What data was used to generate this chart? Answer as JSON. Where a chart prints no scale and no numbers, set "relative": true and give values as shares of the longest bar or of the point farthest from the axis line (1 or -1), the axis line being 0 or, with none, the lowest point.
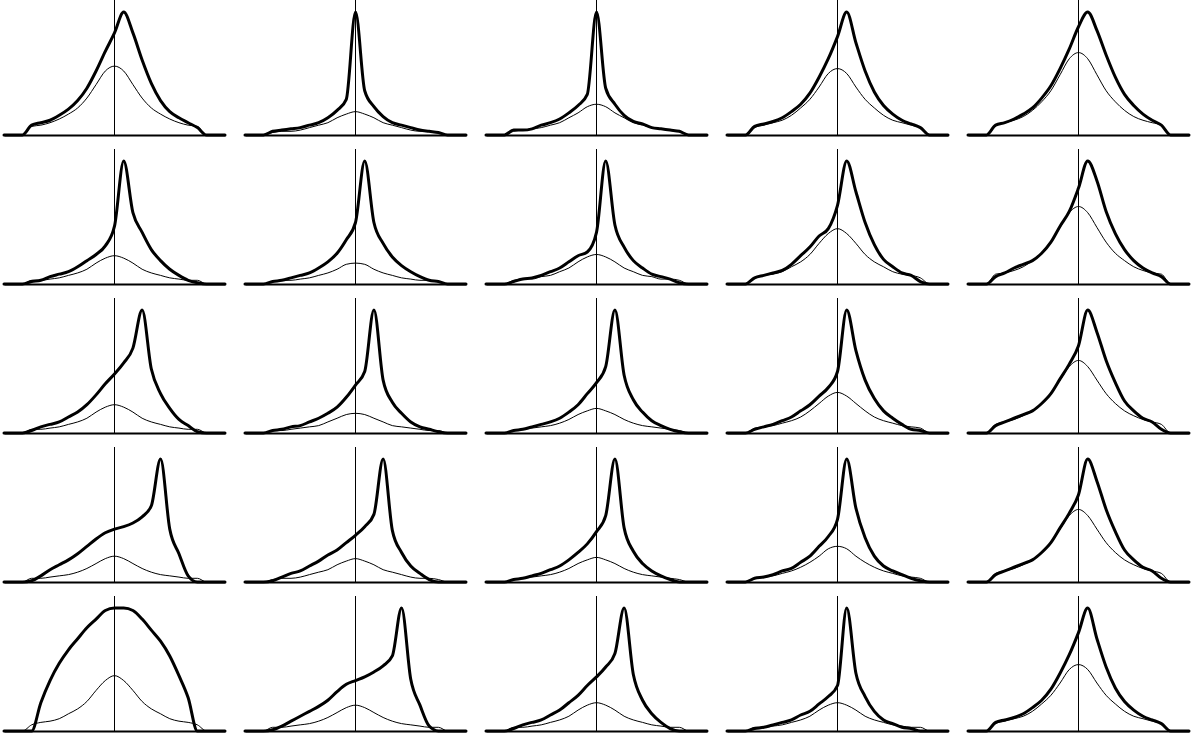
{
  "chart_data": [
    {
      "type": "line",
      "relative": true,
      "categories": [
        null,
        null,
        null,
        null,
        null,
        null,
        null,
        null,
        null,
        null,
        null,
        null,
        null,
        null,
        null,
        null,
        null,
        null,
        null,
        null,
        null,
        null,
        null,
        null,
        null
      ],
      "series": [
        {
          "color": "#000000",
          "values": [
            0,
            0,
            0,
            0.08,
            0.1,
            0.12,
            0.16,
            0.21,
            0.28,
            0.38,
            0.52,
            0.68,
            0.83,
            1,
            0.83,
            0.61,
            0.42,
            0.28,
            0.19,
            0.14,
            0.1,
            0.06,
            0,
            0,
            0
          ]
        },
        {
          "color": "#000000",
          "values": [
            0,
            0,
            0,
            0.07,
            0.08,
            0.1,
            0.13,
            0.17,
            0.22,
            0.3,
            0.41,
            0.52,
            0.56,
            0.52,
            0.41,
            0.3,
            0.22,
            0.17,
            0.13,
            0.1,
            0.08,
            0.07,
            0,
            0,
            0
          ]
        }
      ]
    },
    {
      "type": "line",
      "relative": true,
      "categories": [
        null,
        null,
        null,
        null,
        null,
        null,
        null,
        null,
        null,
        null,
        null,
        null,
        null,
        null,
        null,
        null,
        null,
        null,
        null,
        null,
        null,
        null,
        null,
        null,
        null
      ],
      "series": [
        {
          "color": "#000000",
          "values": [
            0,
            0,
            0,
            0.03,
            0.04,
            0.05,
            0.06,
            0.08,
            0.1,
            0.14,
            0.2,
            0.29,
            1,
            0.36,
            0.23,
            0.15,
            0.1,
            0.08,
            0.06,
            0.04,
            0.03,
            0.02,
            0,
            0,
            0
          ]
        },
        {
          "color": "#000000",
          "values": [
            0,
            0,
            0,
            0.02,
            0.03,
            0.03,
            0.04,
            0.06,
            0.08,
            0.1,
            0.14,
            0.17,
            0.19,
            0.17,
            0.14,
            0.1,
            0.08,
            0.06,
            0.04,
            0.03,
            0.03,
            0.02,
            0,
            0,
            0
          ]
        }
      ]
    },
    {
      "type": "line",
      "relative": true,
      "categories": [
        null,
        null,
        null,
        null,
        null,
        null,
        null,
        null,
        null,
        null,
        null,
        null,
        null,
        null,
        null,
        null,
        null,
        null,
        null,
        null,
        null,
        null,
        null,
        null,
        null
      ],
      "series": [
        {
          "color": "#000000",
          "values": [
            0,
            0,
            0,
            0.04,
            0.04,
            0.05,
            0.08,
            0.1,
            0.13,
            0.18,
            0.24,
            0.33,
            1,
            0.38,
            0.25,
            0.16,
            0.11,
            0.09,
            0.06,
            0.05,
            0.04,
            0.03,
            0,
            0,
            0
          ]
        },
        {
          "color": "#000000",
          "values": [
            0,
            0,
            0,
            0.03,
            0.04,
            0.05,
            0.06,
            0.08,
            0.1,
            0.14,
            0.18,
            0.23,
            0.25,
            0.23,
            0.18,
            0.14,
            0.1,
            0.08,
            0.06,
            0.05,
            0.04,
            0.03,
            0,
            0,
            0
          ]
        }
      ]
    },
    {
      "type": "line",
      "relative": true,
      "categories": [
        null,
        null,
        null,
        null,
        null,
        null,
        null,
        null,
        null,
        null,
        null,
        null,
        null,
        null,
        null,
        null,
        null,
        null,
        null,
        null,
        null,
        null,
        null,
        null,
        null
      ],
      "series": [
        {
          "color": "#000000",
          "values": [
            0,
            0,
            0,
            0.07,
            0.09,
            0.11,
            0.14,
            0.19,
            0.25,
            0.34,
            0.47,
            0.62,
            0.8,
            1,
            0.75,
            0.52,
            0.35,
            0.24,
            0.17,
            0.12,
            0.09,
            0.06,
            0,
            0,
            0
          ]
        },
        {
          "color": "#000000",
          "values": [
            0,
            0,
            0,
            0.06,
            0.08,
            0.1,
            0.12,
            0.16,
            0.22,
            0.29,
            0.39,
            0.5,
            0.54,
            0.5,
            0.39,
            0.29,
            0.22,
            0.16,
            0.12,
            0.1,
            0.08,
            0.06,
            0,
            0,
            0
          ]
        }
      ]
    },
    {
      "type": "line",
      "relative": true,
      "categories": [
        null,
        null,
        null,
        null,
        null,
        null,
        null,
        null,
        null,
        null,
        null,
        null,
        null,
        null,
        null,
        null,
        null,
        null,
        null,
        null,
        null,
        null,
        null,
        null,
        null
      ],
      "series": [
        {
          "color": "#000000",
          "values": [
            0,
            0,
            0,
            0.08,
            0.1,
            0.13,
            0.17,
            0.22,
            0.3,
            0.4,
            0.54,
            0.7,
            0.88,
            1,
            0.85,
            0.65,
            0.47,
            0.33,
            0.24,
            0.17,
            0.12,
            0.08,
            0,
            0,
            0
          ]
        },
        {
          "color": "#000000",
          "values": [
            0,
            0,
            0,
            0.08,
            0.1,
            0.12,
            0.15,
            0.2,
            0.27,
            0.36,
            0.49,
            0.62,
            0.67,
            0.62,
            0.49,
            0.36,
            0.27,
            0.2,
            0.15,
            0.12,
            0.1,
            0.08,
            0,
            0,
            0
          ]
        }
      ]
    },
    {
      "type": "line",
      "relative": true,
      "categories": [
        null,
        null,
        null,
        null,
        null,
        null,
        null,
        null,
        null,
        null,
        null,
        null,
        null,
        null,
        null,
        null,
        null,
        null,
        null,
        null,
        null,
        null,
        null,
        null,
        null
      ],
      "series": [
        {
          "color": "#000000",
          "values": [
            0,
            0,
            0,
            0.02,
            0.03,
            0.06,
            0.08,
            0.1,
            0.14,
            0.19,
            0.24,
            0.31,
            0.47,
            1,
            0.58,
            0.42,
            0.28,
            0.19,
            0.12,
            0.07,
            0.03,
            0.01,
            0,
            0,
            0
          ]
        },
        {
          "color": "#000000",
          "values": [
            0,
            0,
            0,
            0.03,
            0.03,
            0.04,
            0.05,
            0.07,
            0.09,
            0.12,
            0.17,
            0.21,
            0.23,
            0.21,
            0.17,
            0.12,
            0.09,
            0.07,
            0.05,
            0.04,
            0.03,
            0.03,
            0,
            0,
            0
          ]
        }
      ]
    },
    {
      "type": "line",
      "relative": true,
      "categories": [
        null,
        null,
        null,
        null,
        null,
        null,
        null,
        null,
        null,
        null,
        null,
        null,
        null,
        null,
        null,
        null,
        null,
        null,
        null,
        null,
        null,
        null,
        null,
        null,
        null
      ],
      "series": [
        {
          "color": "#000000",
          "values": [
            0,
            0,
            0,
            0.02,
            0.03,
            0.05,
            0.07,
            0.09,
            0.13,
            0.18,
            0.25,
            0.36,
            0.5,
            1,
            0.5,
            0.33,
            0.22,
            0.15,
            0.1,
            0.06,
            0.03,
            0.02,
            0,
            0,
            0
          ]
        },
        {
          "color": "#000000",
          "values": [
            0,
            0,
            0,
            0.02,
            0.03,
            0.03,
            0.04,
            0.05,
            0.07,
            0.09,
            0.12,
            0.16,
            0.17,
            0.16,
            0.12,
            0.09,
            0.07,
            0.05,
            0.04,
            0.03,
            0.03,
            0.02,
            0,
            0,
            0
          ]
        }
      ]
    },
    {
      "type": "line",
      "relative": true,
      "categories": [
        null,
        null,
        null,
        null,
        null,
        null,
        null,
        null,
        null,
        null,
        null,
        null,
        null,
        null,
        null,
        null,
        null,
        null,
        null,
        null,
        null,
        null,
        null,
        null,
        null
      ],
      "series": [
        {
          "color": "#000000",
          "values": [
            0,
            0,
            0,
            0.02,
            0.04,
            0.05,
            0.07,
            0.1,
            0.13,
            0.18,
            0.23,
            0.26,
            0.42,
            1,
            0.48,
            0.3,
            0.19,
            0.13,
            0.08,
            0.06,
            0.04,
            0.01,
            0,
            0,
            0
          ]
        },
        {
          "color": "#000000",
          "values": [
            0,
            0,
            0,
            0.03,
            0.04,
            0.04,
            0.06,
            0.07,
            0.1,
            0.13,
            0.18,
            0.22,
            0.24,
            0.22,
            0.18,
            0.13,
            0.1,
            0.07,
            0.06,
            0.04,
            0.04,
            0.03,
            0,
            0,
            0
          ]
        }
      ]
    },
    {
      "type": "line",
      "relative": true,
      "categories": [
        null,
        null,
        null,
        null,
        null,
        null,
        null,
        null,
        null,
        null,
        null,
        null,
        null,
        null,
        null,
        null,
        null,
        null,
        null,
        null,
        null,
        null,
        null,
        null,
        null
      ],
      "series": [
        {
          "color": "#000000",
          "values": [
            0,
            0,
            0,
            0.05,
            0.07,
            0.09,
            0.11,
            0.16,
            0.23,
            0.3,
            0.39,
            0.45,
            0.64,
            1,
            0.75,
            0.5,
            0.32,
            0.2,
            0.14,
            0.09,
            0.07,
            0.02,
            0,
            0,
            0
          ]
        },
        {
          "color": "#000000",
          "values": [
            0,
            0,
            0,
            0.05,
            0.07,
            0.08,
            0.1,
            0.14,
            0.18,
            0.24,
            0.33,
            0.41,
            0.45,
            0.41,
            0.33,
            0.24,
            0.18,
            0.14,
            0.1,
            0.08,
            0.07,
            0.05,
            0,
            0,
            0
          ]
        }
      ]
    },
    {
      "type": "line",
      "relative": true,
      "categories": [
        null,
        null,
        null,
        null,
        null,
        null,
        null,
        null,
        null,
        null,
        null,
        null,
        null,
        null,
        null,
        null,
        null,
        null,
        null,
        null,
        null,
        null,
        null,
        null,
        null
      ],
      "series": [
        {
          "color": "#000000",
          "values": [
            0,
            0,
            0,
            0.06,
            0.09,
            0.13,
            0.16,
            0.19,
            0.25,
            0.34,
            0.47,
            0.59,
            0.78,
            1,
            0.84,
            0.59,
            0.41,
            0.28,
            0.19,
            0.13,
            0.09,
            0.06,
            0,
            0,
            0
          ]
        },
        {
          "color": "#000000",
          "values": [
            0,
            0,
            0,
            0.08,
            0.09,
            0.11,
            0.14,
            0.19,
            0.25,
            0.34,
            0.46,
            0.58,
            0.63,
            0.58,
            0.46,
            0.34,
            0.25,
            0.19,
            0.14,
            0.11,
            0.09,
            0.08,
            0,
            0,
            0
          ]
        }
      ]
    },
    {
      "type": "line",
      "relative": true,
      "categories": [
        null,
        null,
        null,
        null,
        null,
        null,
        null,
        null,
        null,
        null,
        null,
        null,
        null,
        null,
        null,
        null,
        null,
        null,
        null,
        null,
        null,
        null,
        null,
        null,
        null
      ],
      "series": [
        {
          "color": "#000000",
          "values": [
            0,
            0,
            0,
            0.02,
            0.05,
            0.07,
            0.09,
            0.13,
            0.17,
            0.23,
            0.31,
            0.4,
            0.48,
            0.57,
            0.69,
            1,
            0.52,
            0.32,
            0.2,
            0.11,
            0.06,
            0.01,
            0,
            0,
            0
          ]
        },
        {
          "color": "#000000",
          "values": [
            0,
            0,
            0,
            0.03,
            0.03,
            0.04,
            0.05,
            0.07,
            0.09,
            0.12,
            0.17,
            0.21,
            0.23,
            0.21,
            0.17,
            0.12,
            0.09,
            0.07,
            0.05,
            0.04,
            0.03,
            0.03,
            0,
            0,
            0
          ]
        }
      ]
    },
    {
      "type": "line",
      "relative": true,
      "categories": [
        null,
        null,
        null,
        null,
        null,
        null,
        null,
        null,
        null,
        null,
        null,
        null,
        null,
        null,
        null,
        null,
        null,
        null,
        null,
        null,
        null,
        null,
        null,
        null,
        null
      ],
      "series": [
        {
          "color": "#000000",
          "values": [
            0,
            0,
            0,
            0.02,
            0.03,
            0.05,
            0.06,
            0.09,
            0.12,
            0.16,
            0.21,
            0.29,
            0.39,
            0.5,
            1,
            0.43,
            0.25,
            0.16,
            0.09,
            0.05,
            0.03,
            0.01,
            0,
            0,
            0
          ]
        },
        {
          "color": "#000000",
          "values": [
            0,
            0,
            0,
            0.02,
            0.02,
            0.03,
            0.04,
            0.05,
            0.06,
            0.09,
            0.12,
            0.15,
            0.16,
            0.15,
            0.12,
            0.09,
            0.06,
            0.05,
            0.04,
            0.03,
            0.02,
            0.02,
            0,
            0,
            0
          ]
        }
      ]
    },
    {
      "type": "line",
      "relative": true,
      "categories": [
        null,
        null,
        null,
        null,
        null,
        null,
        null,
        null,
        null,
        null,
        null,
        null,
        null,
        null,
        null,
        null,
        null,
        null,
        null,
        null,
        null,
        null,
        null,
        null,
        null
      ],
      "series": [
        {
          "color": "#000000",
          "values": [
            0,
            0,
            0,
            0.02,
            0.03,
            0.05,
            0.07,
            0.09,
            0.12,
            0.17,
            0.23,
            0.32,
            0.41,
            0.54,
            1,
            0.47,
            0.27,
            0.17,
            0.1,
            0.06,
            0.03,
            0.01,
            0,
            0,
            0
          ]
        },
        {
          "color": "#000000",
          "values": [
            0,
            0,
            0,
            0.02,
            0.03,
            0.04,
            0.05,
            0.06,
            0.08,
            0.11,
            0.15,
            0.18,
            0.2,
            0.18,
            0.15,
            0.11,
            0.08,
            0.06,
            0.05,
            0.04,
            0.03,
            0.02,
            0,
            0,
            0
          ]
        }
      ]
    },
    {
      "type": "line",
      "relative": true,
      "categories": [
        null,
        null,
        null,
        null,
        null,
        null,
        null,
        null,
        null,
        null,
        null,
        null,
        null,
        null,
        null,
        null,
        null,
        null,
        null,
        null,
        null,
        null,
        null,
        null,
        null
      ],
      "series": [
        {
          "color": "#000000",
          "values": [
            0,
            0,
            0,
            0.03,
            0.05,
            0.07,
            0.1,
            0.13,
            0.18,
            0.23,
            0.3,
            0.37,
            0.5,
            1,
            0.67,
            0.43,
            0.28,
            0.18,
            0.12,
            0.07,
            0.03,
            0.02,
            0,
            0,
            0
          ]
        },
        {
          "color": "#000000",
          "values": [
            0,
            0,
            0,
            0.04,
            0.05,
            0.06,
            0.08,
            0.1,
            0.13,
            0.18,
            0.24,
            0.3,
            0.33,
            0.3,
            0.24,
            0.18,
            0.13,
            0.1,
            0.08,
            0.06,
            0.05,
            0.04,
            0,
            0,
            0
          ]
        }
      ]
    },
    {
      "type": "line",
      "relative": true,
      "categories": [
        null,
        null,
        null,
        null,
        null,
        null,
        null,
        null,
        null,
        null,
        null,
        null,
        null,
        null,
        null,
        null,
        null,
        null,
        null,
        null,
        null,
        null,
        null,
        null,
        null
      ],
      "series": [
        {
          "color": "#000000",
          "values": [
            0,
            0,
            0,
            0.06,
            0.09,
            0.12,
            0.15,
            0.18,
            0.24,
            0.32,
            0.44,
            0.56,
            0.71,
            1,
            0.82,
            0.59,
            0.41,
            0.26,
            0.18,
            0.12,
            0.09,
            0.03,
            0,
            0,
            0
          ]
        },
        {
          "color": "#000000",
          "values": [
            0,
            0,
            0,
            0.07,
            0.09,
            0.11,
            0.14,
            0.18,
            0.24,
            0.32,
            0.43,
            0.54,
            0.59,
            0.54,
            0.43,
            0.32,
            0.24,
            0.18,
            0.14,
            0.11,
            0.09,
            0.07,
            0,
            0,
            0
          ]
        }
      ]
    },
    {
      "type": "line",
      "relative": true,
      "categories": [
        null,
        null,
        null,
        null,
        null,
        null,
        null,
        null,
        null,
        null,
        null,
        null,
        null,
        null,
        null,
        null,
        null,
        null,
        null,
        null,
        null,
        null,
        null,
        null,
        null
      ],
      "series": [
        {
          "color": "#000000",
          "values": [
            0,
            0,
            0,
            0.01,
            0.05,
            0.1,
            0.14,
            0.18,
            0.23,
            0.29,
            0.35,
            0.4,
            0.43,
            0.45,
            0.48,
            0.53,
            0.62,
            1,
            0.43,
            0.23,
            0.05,
            0,
            0,
            0,
            0
          ]
        },
        {
          "color": "#000000",
          "values": [
            0,
            0,
            0,
            0.03,
            0.03,
            0.04,
            0.05,
            0.06,
            0.08,
            0.11,
            0.15,
            0.19,
            0.21,
            0.19,
            0.15,
            0.11,
            0.08,
            0.06,
            0.05,
            0.04,
            0.03,
            0.03,
            0,
            0,
            0
          ]
        }
      ]
    },
    {
      "type": "line",
      "relative": true,
      "categories": [
        null,
        null,
        null,
        null,
        null,
        null,
        null,
        null,
        null,
        null,
        null,
        null,
        null,
        null,
        null,
        null,
        null,
        null,
        null,
        null,
        null,
        null,
        null,
        null,
        null
      ],
      "series": [
        {
          "color": "#000000",
          "values": [
            0,
            0,
            0,
            0.01,
            0.04,
            0.07,
            0.09,
            0.13,
            0.17,
            0.22,
            0.26,
            0.32,
            0.38,
            0.45,
            0.55,
            1,
            0.42,
            0.24,
            0.13,
            0.07,
            0.02,
            0,
            0,
            0,
            0
          ]
        },
        {
          "color": "#000000",
          "values": [
            0,
            0,
            0,
            0.02,
            0.03,
            0.03,
            0.04,
            0.06,
            0.08,
            0.1,
            0.14,
            0.17,
            0.19,
            0.17,
            0.14,
            0.1,
            0.08,
            0.06,
            0.04,
            0.03,
            0.03,
            0.02,
            0,
            0,
            0
          ]
        }
      ]
    },
    {
      "type": "line",
      "relative": true,
      "categories": [
        null,
        null,
        null,
        null,
        null,
        null,
        null,
        null,
        null,
        null,
        null,
        null,
        null,
        null,
        null,
        null,
        null,
        null,
        null,
        null,
        null,
        null,
        null,
        null,
        null
      ],
      "series": [
        {
          "color": "#000000",
          "values": [
            0,
            0,
            0,
            0.02,
            0.03,
            0.05,
            0.07,
            0.1,
            0.13,
            0.18,
            0.24,
            0.31,
            0.41,
            0.54,
            1,
            0.44,
            0.25,
            0.15,
            0.09,
            0.05,
            0.02,
            0,
            0,
            0,
            0
          ]
        },
        {
          "color": "#000000",
          "values": [
            0,
            0,
            0,
            0.02,
            0.03,
            0.04,
            0.05,
            0.06,
            0.08,
            0.11,
            0.15,
            0.18,
            0.2,
            0.18,
            0.15,
            0.11,
            0.08,
            0.06,
            0.05,
            0.04,
            0.03,
            0.02,
            0,
            0,
            0
          ]
        }
      ]
    },
    {
      "type": "line",
      "relative": true,
      "categories": [
        null,
        null,
        null,
        null,
        null,
        null,
        null,
        null,
        null,
        null,
        null,
        null,
        null,
        null,
        null,
        null,
        null,
        null,
        null,
        null,
        null,
        null,
        null,
        null,
        null
      ],
      "series": [
        {
          "color": "#000000",
          "values": [
            0,
            0,
            0,
            0.03,
            0.04,
            0.06,
            0.09,
            0.11,
            0.16,
            0.21,
            0.29,
            0.37,
            0.51,
            1,
            0.6,
            0.36,
            0.21,
            0.13,
            0.09,
            0.06,
            0.03,
            0.01,
            0,
            0,
            0
          ]
        },
        {
          "color": "#000000",
          "values": [
            0,
            0,
            0,
            0.03,
            0.04,
            0.05,
            0.07,
            0.09,
            0.12,
            0.16,
            0.21,
            0.27,
            0.29,
            0.27,
            0.21,
            0.16,
            0.12,
            0.09,
            0.07,
            0.05,
            0.04,
            0.03,
            0,
            0,
            0
          ]
        }
      ]
    },
    {
      "type": "line",
      "relative": true,
      "categories": [
        null,
        null,
        null,
        null,
        null,
        null,
        null,
        null,
        null,
        null,
        null,
        null,
        null,
        null,
        null,
        null,
        null,
        null,
        null,
        null,
        null,
        null,
        null,
        null,
        null
      ],
      "series": [
        {
          "color": "#000000",
          "values": [
            0,
            0,
            0,
            0.06,
            0.09,
            0.12,
            0.15,
            0.18,
            0.24,
            0.32,
            0.44,
            0.56,
            0.71,
            1,
            0.82,
            0.59,
            0.41,
            0.26,
            0.18,
            0.12,
            0.09,
            0.03,
            0,
            0,
            0
          ]
        },
        {
          "color": "#000000",
          "values": [
            0,
            0,
            0,
            0.07,
            0.09,
            0.11,
            0.14,
            0.18,
            0.24,
            0.32,
            0.43,
            0.54,
            0.59,
            0.54,
            0.43,
            0.32,
            0.24,
            0.18,
            0.14,
            0.11,
            0.09,
            0.07,
            0,
            0,
            0
          ]
        }
      ]
    },
    {
      "type": "line",
      "relative": true,
      "categories": [
        null,
        null,
        null,
        null,
        null,
        null,
        null,
        null,
        null,
        null,
        null,
        null,
        null,
        null,
        null,
        null,
        null,
        null,
        null,
        null,
        null,
        null,
        null,
        null,
        null
      ],
      "series": [
        {
          "color": "#000000",
          "values": [
            0,
            0,
            0,
            0,
            0.23,
            0.41,
            0.55,
            0.66,
            0.75,
            0.84,
            0.91,
            0.98,
            1,
            1,
            0.98,
            0.91,
            0.82,
            0.73,
            0.61,
            0.45,
            0.27,
            0,
            0,
            0,
            0
          ]
        },
        {
          "color": "#000000",
          "values": [
            0,
            0,
            0,
            0.05,
            0.07,
            0.08,
            0.1,
            0.14,
            0.18,
            0.24,
            0.33,
            0.41,
            0.45,
            0.41,
            0.33,
            0.24,
            0.18,
            0.14,
            0.1,
            0.08,
            0.07,
            0.05,
            0,
            0,
            0
          ]
        }
      ]
    },
    {
      "type": "line",
      "relative": true,
      "categories": [
        null,
        null,
        null,
        null,
        null,
        null,
        null,
        null,
        null,
        null,
        null,
        null,
        null,
        null,
        null,
        null,
        null,
        null,
        null,
        null,
        null,
        null,
        null,
        null,
        null
      ],
      "series": [
        {
          "color": "#000000",
          "values": [
            0,
            0,
            0,
            0.01,
            0.04,
            0.08,
            0.12,
            0.16,
            0.2,
            0.25,
            0.32,
            0.38,
            0.41,
            0.44,
            0.48,
            0.53,
            0.61,
            1,
            0.42,
            0.21,
            0.04,
            0,
            0,
            0,
            0
          ]
        },
        {
          "color": "#000000",
          "values": [
            0,
            0,
            0,
            0.03,
            0.03,
            0.04,
            0.05,
            0.06,
            0.08,
            0.11,
            0.15,
            0.19,
            0.21,
            0.19,
            0.15,
            0.11,
            0.08,
            0.06,
            0.05,
            0.04,
            0.03,
            0.03,
            0,
            0,
            0
          ]
        }
      ]
    },
    {
      "type": "line",
      "relative": true,
      "categories": [
        null,
        null,
        null,
        null,
        null,
        null,
        null,
        null,
        null,
        null,
        null,
        null,
        null,
        null,
        null,
        null,
        null,
        null,
        null,
        null,
        null,
        null,
        null,
        null,
        null
      ],
      "series": [
        {
          "color": "#000000",
          "values": [
            0,
            0,
            0,
            0.02,
            0.05,
            0.07,
            0.09,
            0.13,
            0.17,
            0.23,
            0.29,
            0.37,
            0.44,
            0.52,
            0.63,
            1,
            0.46,
            0.25,
            0.14,
            0.07,
            0.02,
            0,
            0,
            0,
            0
          ]
        },
        {
          "color": "#000000",
          "values": [
            0,
            0,
            0,
            0.03,
            0.03,
            0.04,
            0.05,
            0.07,
            0.09,
            0.12,
            0.17,
            0.21,
            0.23,
            0.21,
            0.17,
            0.12,
            0.09,
            0.07,
            0.05,
            0.04,
            0.03,
            0.03,
            0,
            0,
            0
          ]
        }
      ]
    },
    {
      "type": "line",
      "relative": true,
      "categories": [
        null,
        null,
        null,
        null,
        null,
        null,
        null,
        null,
        null,
        null,
        null,
        null,
        null,
        null,
        null,
        null,
        null,
        null,
        null,
        null,
        null,
        null,
        null,
        null,
        null
      ],
      "series": [
        {
          "color": "#000000",
          "values": [
            0,
            0,
            0,
            0.02,
            0.03,
            0.05,
            0.07,
            0.09,
            0.13,
            0.16,
            0.22,
            0.28,
            0.37,
            1,
            0.47,
            0.28,
            0.16,
            0.09,
            0.06,
            0.03,
            0.02,
            0,
            0,
            0,
            0
          ]
        },
        {
          "color": "#000000",
          "values": [
            0,
            0,
            0,
            0.03,
            0.03,
            0.04,
            0.05,
            0.07,
            0.09,
            0.12,
            0.17,
            0.21,
            0.23,
            0.21,
            0.17,
            0.12,
            0.09,
            0.07,
            0.05,
            0.04,
            0.03,
            0.03,
            0,
            0,
            0
          ]
        }
      ]
    },
    {
      "type": "line",
      "relative": true,
      "categories": [
        null,
        null,
        null,
        null,
        null,
        null,
        null,
        null,
        null,
        null,
        null,
        null,
        null,
        null,
        null,
        null,
        null,
        null,
        null,
        null,
        null,
        null,
        null,
        null,
        null
      ],
      "series": [
        {
          "color": "#000000",
          "values": [
            0,
            0,
            0,
            0.07,
            0.09,
            0.11,
            0.14,
            0.19,
            0.25,
            0.34,
            0.47,
            0.62,
            0.8,
            1,
            0.75,
            0.52,
            0.35,
            0.24,
            0.17,
            0.12,
            0.09,
            0.06,
            0,
            0,
            0
          ]
        },
        {
          "color": "#000000",
          "values": [
            0,
            0,
            0,
            0.06,
            0.08,
            0.1,
            0.12,
            0.16,
            0.22,
            0.29,
            0.39,
            0.5,
            0.54,
            0.5,
            0.39,
            0.29,
            0.22,
            0.16,
            0.12,
            0.1,
            0.08,
            0.06,
            0,
            0,
            0
          ]
        }
      ]
    }
  ]
}
